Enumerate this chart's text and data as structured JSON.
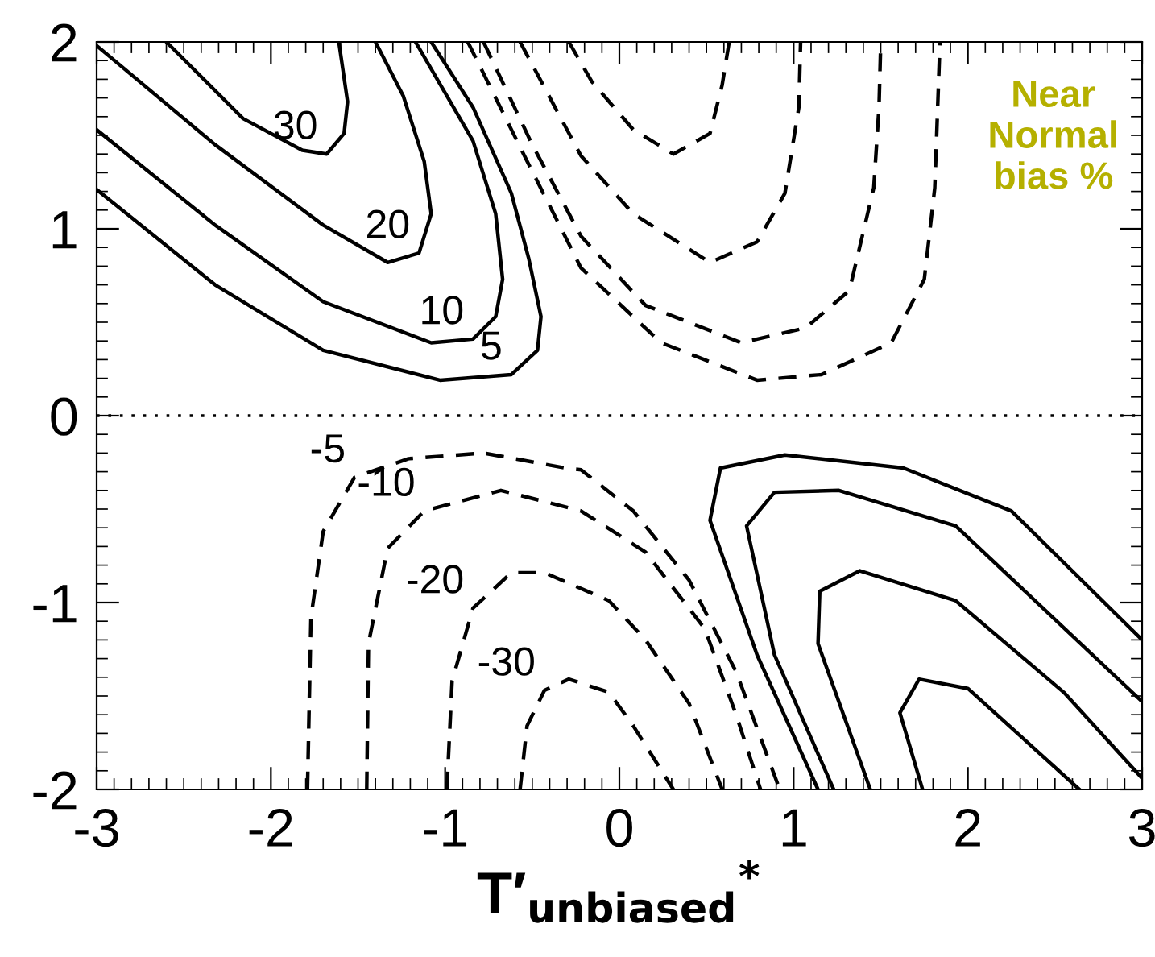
{
  "chart_data": {
    "type": "line",
    "xlabel": "T′$_{unbiased}$$^{*}$",
    "xlim": [
      -3,
      3
    ],
    "ylim": [
      -2,
      2
    ],
    "xticks": [
      -3,
      -2,
      -1,
      0,
      1,
      2,
      3
    ],
    "yticks": [
      -2,
      -1,
      0,
      1,
      2
    ],
    "grid": false,
    "legend": false,
    "marker": "none",
    "series": [
      {
        "color": "#000000",
        "line_style": "solid",
        "x": [
          -3,
          -2.32,
          -1.7,
          -1.03,
          -0.62,
          -0.47,
          -0.45,
          -0.52,
          -0.62,
          -0.84,
          -1.08
        ],
        "values": [
          1.21,
          0.7,
          0.35,
          0.19,
          0.22,
          0.35,
          0.53,
          0.84,
          1.19,
          1.65,
          2.0
        ]
      },
      {
        "color": "#000000",
        "line_style": "solid",
        "x": [
          -3,
          -2.32,
          -1.7,
          -1.08,
          -0.84,
          -0.71,
          -0.67,
          -0.71,
          -0.84,
          -1.17
        ],
        "values": [
          1.53,
          1.02,
          0.61,
          0.39,
          0.41,
          0.53,
          0.73,
          1.08,
          1.47,
          2.0
        ]
      },
      {
        "color": "#000000",
        "line_style": "solid",
        "x": [
          -3,
          -2.32,
          -1.7,
          -1.33,
          -1.15,
          -1.08,
          -1.12,
          -1.24,
          -1.4
        ],
        "values": [
          1.98,
          1.45,
          1.02,
          0.82,
          0.87,
          1.08,
          1.36,
          1.71,
          2.0
        ]
      },
      {
        "color": "#000000",
        "line_style": "solid",
        "x": [
          -2.6,
          -2.16,
          -1.82,
          -1.68,
          -1.58,
          -1.56,
          -1.61
        ],
        "values": [
          2.0,
          1.59,
          1.42,
          1.4,
          1.51,
          1.68,
          2.0
        ]
      },
      {
        "color": "#000000",
        "line_style": "dashed",
        "x": [
          -0.29,
          -0.16,
          0.08,
          0.31,
          0.52,
          0.59,
          0.63
        ],
        "values": [
          2.0,
          1.79,
          1.53,
          1.4,
          1.51,
          1.77,
          2.0
        ]
      },
      {
        "color": "#000000",
        "line_style": "dashed",
        "x": [
          -0.57,
          -0.22,
          0.08,
          0.52,
          0.79,
          0.95,
          1.03,
          1.04
        ],
        "values": [
          2.0,
          1.39,
          1.08,
          0.82,
          0.93,
          1.19,
          1.65,
          2.0
        ]
      },
      {
        "color": "#000000",
        "line_style": "dashed",
        "x": [
          -0.78,
          -0.5,
          -0.22,
          0.15,
          0.7,
          1.07,
          1.32,
          1.46,
          1.49,
          1.5
        ],
        "values": [
          2.0,
          1.45,
          0.96,
          0.59,
          0.39,
          0.47,
          0.67,
          1.22,
          1.65,
          2.0
        ]
      },
      {
        "color": "#000000",
        "line_style": "dashed",
        "x": [
          -0.87,
          -0.55,
          -0.22,
          0.24,
          0.79,
          1.16,
          1.56,
          1.75,
          1.81,
          1.84
        ],
        "values": [
          2.0,
          1.4,
          0.79,
          0.39,
          0.19,
          0.22,
          0.39,
          0.73,
          1.22,
          2.0
        ]
      },
      {
        "color": "#000000",
        "line_style": "dashed",
        "x": [
          -1.79,
          -1.77,
          -1.7,
          -1.52,
          -1.21,
          -0.78,
          -0.31,
          -0.22,
          0.08,
          0.4,
          0.67,
          0.92
        ],
        "values": [
          -2.0,
          -1.08,
          -0.62,
          -0.33,
          -0.23,
          -0.2,
          -0.28,
          -0.29,
          -0.51,
          -0.88,
          -1.37,
          -2.0
        ]
      },
      {
        "color": "#000000",
        "line_style": "dashed",
        "x": [
          -1.45,
          -1.44,
          -1.33,
          -1.12,
          -0.68,
          -0.22,
          0.15,
          0.49,
          0.67,
          0.81
        ],
        "values": [
          -2.0,
          -1.22,
          -0.71,
          -0.51,
          -0.4,
          -0.51,
          -0.73,
          -1.14,
          -1.6,
          -2.0
        ]
      },
      {
        "color": "#000000",
        "line_style": "dashed",
        "x": [
          -0.99,
          -0.96,
          -0.84,
          -0.62,
          -0.43,
          -0.06,
          0.15,
          0.4,
          0.59
        ],
        "values": [
          -2.0,
          -1.42,
          -1.03,
          -0.84,
          -0.84,
          -0.99,
          -1.2,
          -1.54,
          -2.0
        ]
      },
      {
        "color": "#000000",
        "line_style": "dashed",
        "x": [
          -0.57,
          -0.53,
          -0.43,
          -0.29,
          -0.06,
          0.08,
          0.31
        ],
        "values": [
          -2.0,
          -1.66,
          -1.47,
          -1.41,
          -1.48,
          -1.66,
          -2.0
        ]
      },
      {
        "color": "#000000",
        "line_style": "solid",
        "x": [
          1.14,
          0.79,
          0.52,
          0.58,
          0.95,
          1.63,
          2.25,
          3.0
        ],
        "values": [
          -2.0,
          -1.28,
          -0.56,
          -0.28,
          -0.21,
          -0.28,
          -0.51,
          -1.2
        ]
      },
      {
        "color": "#000000",
        "line_style": "solid",
        "x": [
          1.23,
          0.89,
          0.73,
          0.89,
          1.26,
          1.93,
          3.0
        ],
        "values": [
          -2.0,
          -1.28,
          -0.59,
          -0.41,
          -0.4,
          -0.59,
          -1.53
        ]
      },
      {
        "color": "#000000",
        "line_style": "solid",
        "x": [
          1.44,
          1.14,
          1.15,
          1.38,
          1.93,
          2.55,
          3.0
        ],
        "values": [
          -2.0,
          -1.22,
          -0.94,
          -0.83,
          -0.99,
          -1.48,
          -1.94
        ]
      },
      {
        "color": "#000000",
        "line_style": "solid",
        "x": [
          1.74,
          1.61,
          1.72,
          2.0,
          2.64
        ],
        "values": [
          -2.0,
          -1.59,
          -1.41,
          -1.46,
          -2.0
        ]
      }
    ],
    "ref_lines": [
      {
        "axis": "y",
        "value": 0,
        "color": "#000000",
        "line_style": "dotted"
      }
    ],
    "annotations": [
      {
        "text": "30",
        "x": -1.68,
        "y": 1.4
      },
      {
        "text": "20",
        "x": -1.15,
        "y": 0.87
      },
      {
        "text": "10",
        "x": -0.84,
        "y": 0.41
      },
      {
        "text": "5",
        "x": -0.62,
        "y": 0.22
      },
      {
        "text": "-5",
        "x": -1.52,
        "y": -0.33
      },
      {
        "text": "-10",
        "x": -1.12,
        "y": -0.51
      },
      {
        "text": "-20",
        "x": -0.84,
        "y": -1.03
      },
      {
        "text": "-30",
        "x": -0.43,
        "y": -1.47
      },
      "Near\nNormal\nbias %"
    ]
  }
}
